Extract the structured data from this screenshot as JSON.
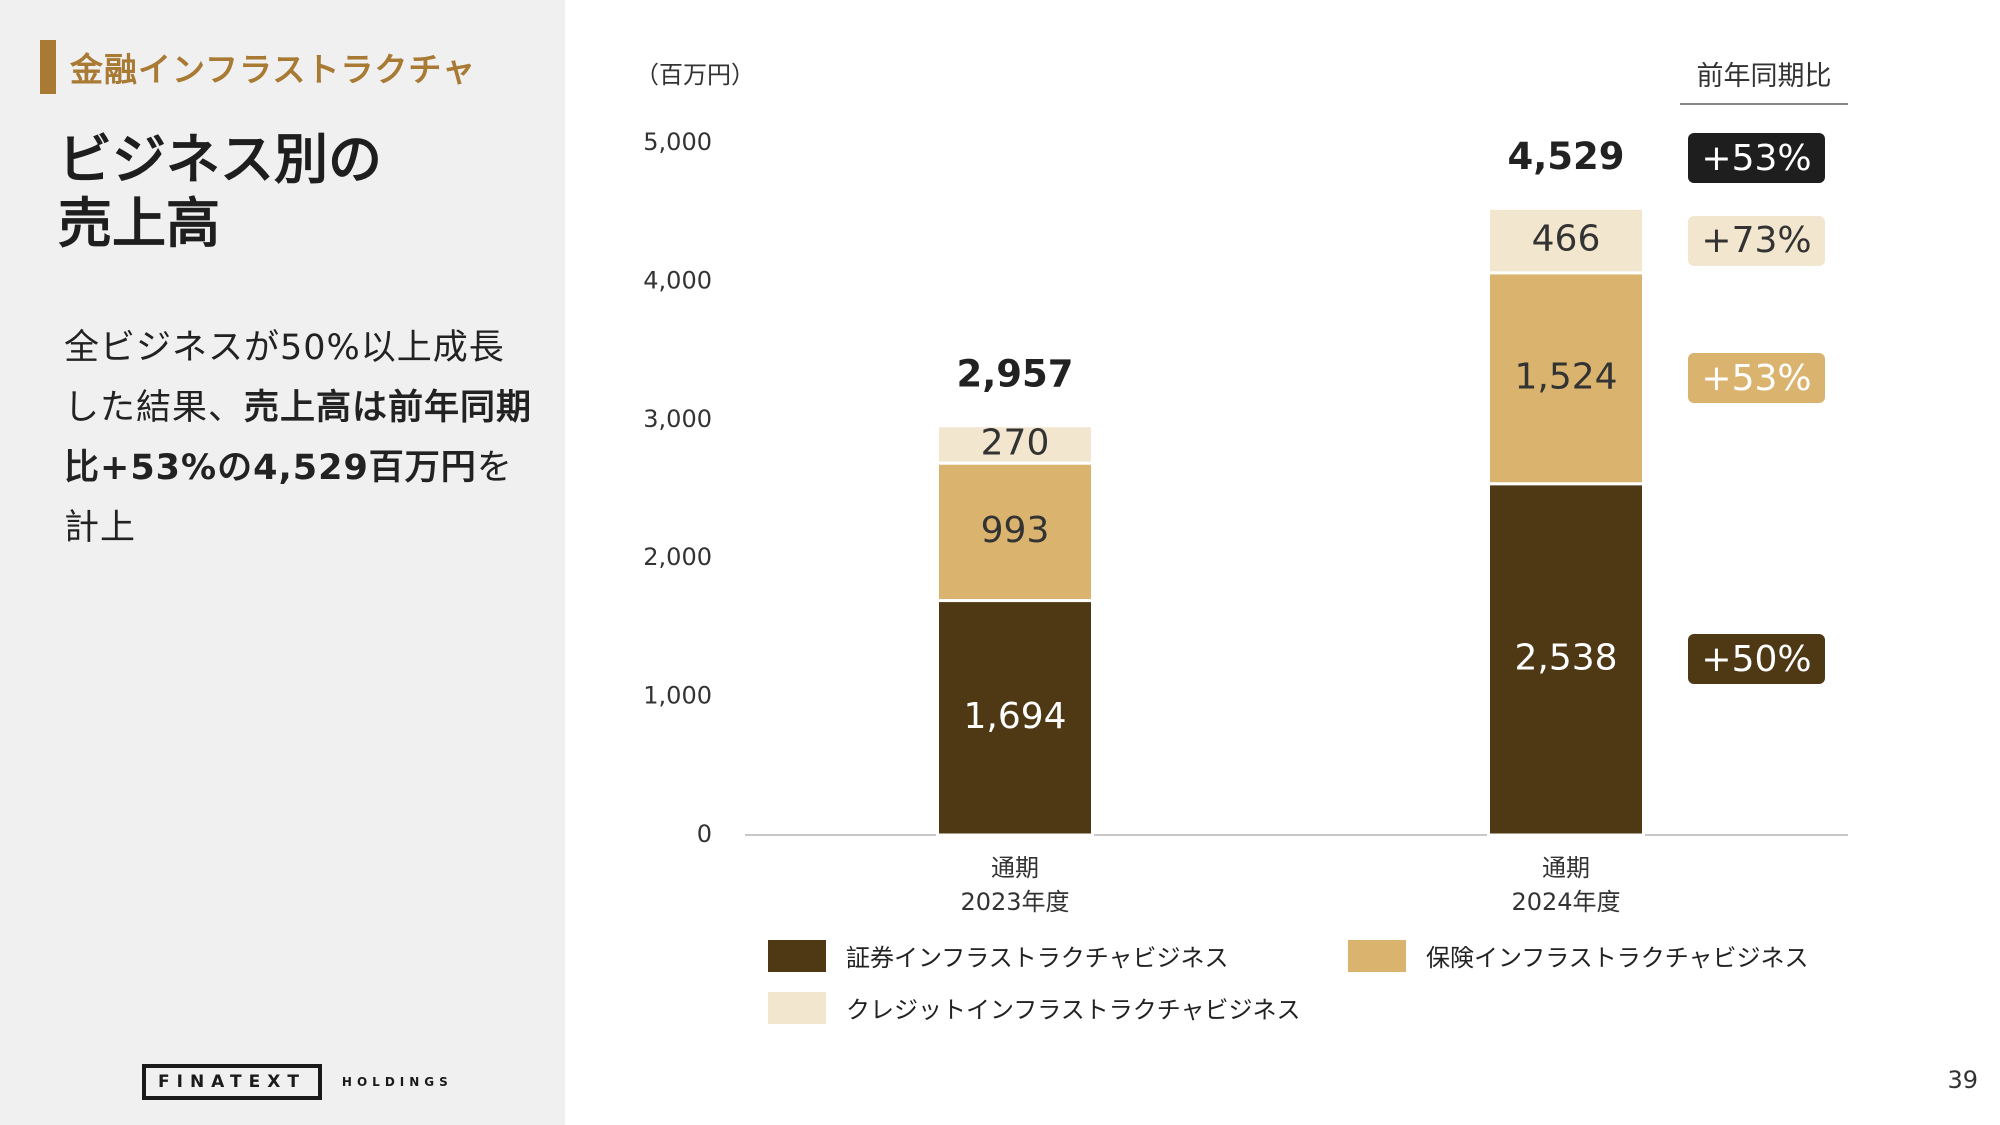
{
  "header": {
    "section_tag": "金融インフラストラクチャ",
    "title": "ビジネス別の\n売上高"
  },
  "summary": {
    "part1": "全ビジネスが50%以上成長した結果、",
    "bold": "売上高は前年同期比+53%の4,529百万円",
    "part2": "を計上"
  },
  "logo": {
    "main": "FINATEXT",
    "sub": "HOLDINGS"
  },
  "page_number": "39",
  "yoy": {
    "header": "前年同期比",
    "badges": [
      {
        "label": "+53%",
        "target": "total",
        "bg": "#1e1e1e",
        "fg": "#ffffff"
      },
      {
        "label": "+73%",
        "target": "クレジットインフラストラクチャビジネス",
        "bg": "#f2e6cf",
        "fg": "#333333"
      },
      {
        "label": "+53%",
        "target": "保険インフラストラクチャビジネス",
        "bg": "#dab46f",
        "fg": "#ffffff"
      },
      {
        "label": "+50%",
        "target": "証券インフラストラクチャビジネス",
        "bg": "#4f3915",
        "fg": "#ffffff"
      }
    ]
  },
  "chart_data": {
    "type": "bar",
    "stacked": true,
    "unit_label": "（百万円）",
    "categories": [
      "通期\n2023年度",
      "通期\n2024年度"
    ],
    "series": [
      {
        "name": "証券インフラストラクチャビジネス",
        "values": [
          1694,
          2538
        ],
        "labels": [
          "1,694",
          "2,538"
        ],
        "color": "#4f3915",
        "label_color": "#ffffff"
      },
      {
        "name": "保険インフラストラクチャビジネス",
        "values": [
          993,
          1524
        ],
        "labels": [
          "993",
          "1,524"
        ],
        "color": "#dab46f",
        "label_color": "#333333"
      },
      {
        "name": "クレジットインフラストラクチャビジネス",
        "values": [
          270,
          466
        ],
        "labels": [
          "270",
          "466"
        ],
        "color": "#f2e6cf",
        "label_color": "#333333"
      }
    ],
    "totals": [
      "2,957",
      "4,529"
    ],
    "yticks": [
      "0",
      "1,000",
      "2,000",
      "3,000",
      "4,000",
      "5,000"
    ],
    "ylim": [
      0,
      5000
    ],
    "grid": false,
    "legend_position": "bottom"
  }
}
